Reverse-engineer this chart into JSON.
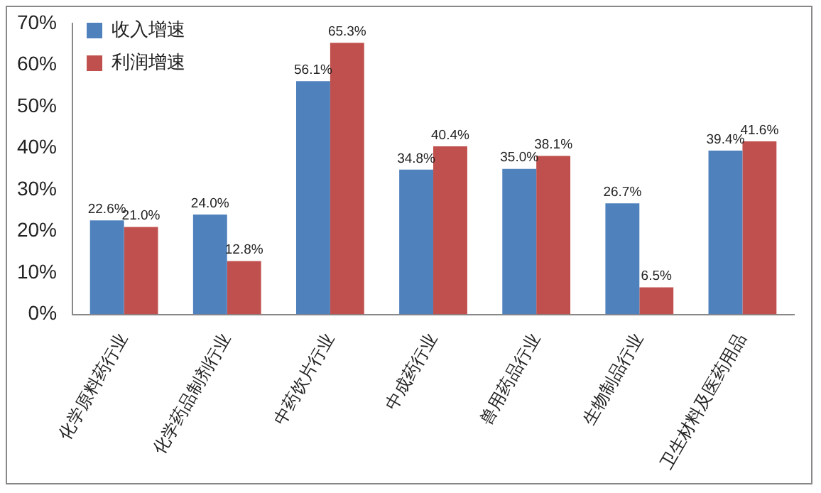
{
  "chart_data": {
    "type": "bar",
    "categories": [
      "化学原料药行业",
      "化学药品制剂行业",
      "中药饮片行业",
      "中成药行业",
      "兽用药品行业",
      "生物制品行业",
      "卫生材料及医药用品"
    ],
    "series": [
      {
        "name": "收入增速",
        "color": "#4f81bd",
        "values": [
          22.6,
          24.0,
          56.1,
          34.8,
          35.0,
          26.7,
          39.4
        ],
        "value_labels": [
          "22.6%",
          "24.0%",
          "56.1%",
          "34.8%",
          "35.0%",
          "26.7%",
          "39.4%"
        ]
      },
      {
        "name": "利润增速",
        "color": "#c0504d",
        "values": [
          21.0,
          12.8,
          65.3,
          40.4,
          38.1,
          6.5,
          41.6
        ],
        "value_labels": [
          "21.0%",
          "12.8%",
          "65.3%",
          "40.4%",
          "38.1%",
          "6.5%",
          "41.6%"
        ]
      }
    ],
    "ylim": [
      0,
      70
    ],
    "yticks": [
      {
        "value": 0,
        "label": "0%"
      },
      {
        "value": 10,
        "label": "10%"
      },
      {
        "value": 20,
        "label": "20%"
      },
      {
        "value": 30,
        "label": "30%"
      },
      {
        "value": 40,
        "label": "40%"
      },
      {
        "value": 50,
        "label": "50%"
      },
      {
        "value": 60,
        "label": "60%"
      },
      {
        "value": 70,
        "label": "70%"
      }
    ],
    "grid": false,
    "legend": "top left"
  }
}
